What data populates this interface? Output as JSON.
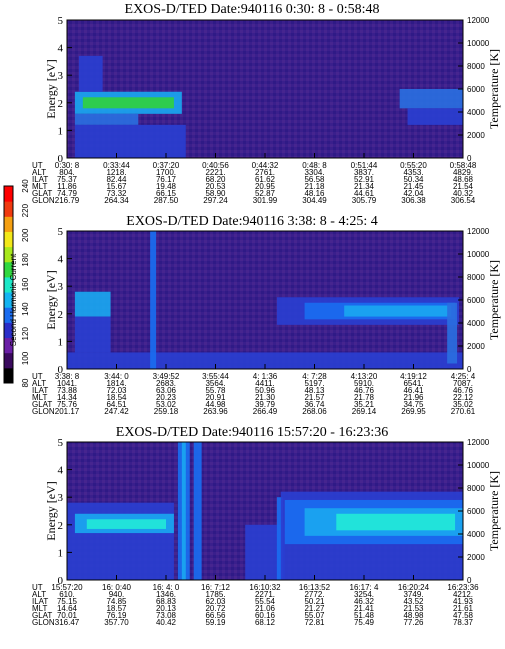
{
  "colorbar": {
    "label": "Second Harmonic Current",
    "ticks": [
      "80",
      "100",
      "120",
      "140",
      "160",
      "180",
      "200",
      "220",
      "240"
    ],
    "colors": [
      "#000000",
      "#3a0a5e",
      "#6a1fa6",
      "#2a2ec8",
      "#1a6cf0",
      "#14b4f2",
      "#1ce8c8",
      "#30d840",
      "#a8e81c",
      "#f2e81a",
      "#f5a012",
      "#f03a10",
      "#ff0000"
    ]
  },
  "palette": {
    "background": "#3a1f8c",
    "blue": "#2a3ed0",
    "bright": "#1aa6f0",
    "cyan": "#22e8d8",
    "green": "#30d040"
  },
  "panels": [
    {
      "title": "EXOS-D/TED   Date:940116  0:30: 8 - 0:58:48",
      "ylabel": "Energy [eV]",
      "y2label": "Temperature [K]",
      "yticks": [
        "0",
        "1",
        "2",
        "3",
        "4",
        "5"
      ],
      "y2ticks": [
        "0",
        "2000",
        "4000",
        "6000",
        "8000",
        "10000",
        "12000"
      ],
      "ephemeris": [
        [
          "UT",
          "0:30: 8",
          "0:33:44",
          "0:37:20",
          "0:40:56",
          "0:44:32",
          "0:48: 8",
          "0:51:44",
          "0:55:20",
          "0:58:48"
        ],
        [
          "ALT",
          "804.",
          "1218.",
          "1700.",
          "2221.",
          "2761.",
          "3304.",
          "3837.",
          "4353.",
          "4829."
        ],
        [
          "ILAT",
          "75.37",
          "82.44",
          "76.17",
          "68.20",
          "61.62",
          "56.58",
          "52.91",
          "50.34",
          "48.68"
        ],
        [
          "MLT",
          "11.86",
          "15.67",
          "19.48",
          "20.53",
          "20.95",
          "21.18",
          "21.34",
          "21.45",
          "21.54"
        ],
        [
          "GLAT",
          "74.79",
          "73.32",
          "66.15",
          "58.90",
          "52.87",
          "48.16",
          "44.61",
          "42.04",
          "40.32"
        ],
        [
          "GLON",
          "216.79",
          "264.34",
          "287.50",
          "297.24",
          "301.99",
          "304.49",
          "305.79",
          "306.38",
          "306.54"
        ]
      ],
      "features": [
        {
          "type": "band",
          "x0": 0.02,
          "x1": 0.29,
          "y0": 1.6,
          "y1": 2.4,
          "color": "#1aa6f0"
        },
        {
          "type": "band",
          "x0": 0.04,
          "x1": 0.27,
          "y0": 1.8,
          "y1": 2.2,
          "color": "#30d040"
        },
        {
          "type": "band",
          "x0": 0.02,
          "x1": 0.18,
          "y0": 1.2,
          "y1": 1.6,
          "color": "#2a6ee0"
        },
        {
          "type": "band",
          "x0": 0.02,
          "x1": 0.3,
          "y0": 0.0,
          "y1": 1.2,
          "color": "#2a3ed0"
        },
        {
          "type": "band",
          "x0": 0.03,
          "x1": 0.09,
          "y0": 2.4,
          "y1": 3.7,
          "color": "#2a3ed0"
        },
        {
          "type": "band",
          "x0": 0.84,
          "x1": 1.0,
          "y0": 1.8,
          "y1": 2.5,
          "color": "#2a6ee0"
        },
        {
          "type": "band",
          "x0": 0.86,
          "x1": 1.0,
          "y0": 1.2,
          "y1": 1.8,
          "color": "#2a3ed0"
        }
      ]
    },
    {
      "title": "EXOS-D/TED   Date:940116  3:38: 8 - 4:25: 4",
      "ylabel": "Energy [eV]",
      "y2label": "Temperature [K]",
      "yticks": [
        "0",
        "1",
        "2",
        "3",
        "4",
        "5"
      ],
      "y2ticks": [
        "0",
        "2000",
        "4000",
        "6000",
        "8000",
        "10000",
        "12000"
      ],
      "ephemeris": [
        [
          "UT",
          "3:38: 8",
          "3:44: 0",
          "3:49:52",
          "3:55:44",
          "4: 1:36",
          "4: 7:28",
          "4:13:20",
          "4:19:12",
          "4:25: 4"
        ],
        [
          "ALT",
          "1041.",
          "1814.",
          "2683.",
          "3564.",
          "4411.",
          "5197.",
          "5910.",
          "6541.",
          "7087."
        ],
        [
          "ILAT",
          "73.88",
          "72.03",
          "63.06",
          "55.78",
          "50.96",
          "48.13",
          "46.76",
          "46.41",
          "46.76"
        ],
        [
          "MLT",
          "14.34",
          "18.54",
          "20.23",
          "20.91",
          "21.30",
          "21.57",
          "21.78",
          "21.96",
          "22.12"
        ],
        [
          "GLAT",
          "75.76",
          "64.51",
          "53.02",
          "44.98",
          "39.79",
          "36.74",
          "35.21",
          "34.75",
          "35.02"
        ],
        [
          "GLON",
          "201.17",
          "247.42",
          "259.18",
          "263.96",
          "266.49",
          "268.06",
          "269.14",
          "269.95",
          "270.61"
        ]
      ],
      "features": [
        {
          "type": "band",
          "x0": 0.0,
          "x1": 1.0,
          "y0": 0.0,
          "y1": 0.6,
          "color": "#2a3ed0"
        },
        {
          "type": "band",
          "x0": 0.02,
          "x1": 0.11,
          "y0": 1.9,
          "y1": 2.8,
          "color": "#1aa6f0"
        },
        {
          "type": "band",
          "x0": 0.02,
          "x1": 0.11,
          "y0": 0.6,
          "y1": 1.9,
          "color": "#2a3ed0"
        },
        {
          "type": "band",
          "x0": 0.53,
          "x1": 0.99,
          "y0": 1.6,
          "y1": 2.6,
          "color": "#2a3ed0"
        },
        {
          "type": "band",
          "x0": 0.6,
          "x1": 0.98,
          "y0": 1.8,
          "y1": 2.4,
          "color": "#1a6cf0"
        },
        {
          "type": "band",
          "x0": 0.7,
          "x1": 0.97,
          "y0": 1.9,
          "y1": 2.3,
          "color": "#1aa6f0"
        },
        {
          "type": "band",
          "x0": 0.21,
          "x1": 0.225,
          "y0": 0.0,
          "y1": 5.0,
          "color": "#1a6cf0"
        },
        {
          "type": "band",
          "x0": 0.96,
          "x1": 0.985,
          "y0": 0.2,
          "y1": 2.4,
          "color": "#2a6ee0"
        }
      ]
    },
    {
      "title": "EXOS-D/TED   Date:940116  15:57:20 - 16:23:36",
      "ylabel": "Energy [eV]",
      "y2label": "Temperature [K]",
      "yticks": [
        "0",
        "1",
        "2",
        "3",
        "4",
        "5"
      ],
      "y2ticks": [
        "0",
        "2000",
        "4000",
        "6000",
        "8000",
        "10000",
        "12000"
      ],
      "ephemeris": [
        [
          "UT",
          "15:57:20",
          "16: 0:40",
          "16: 4: 0",
          "16: 7:12",
          "16:10:32",
          "16:13:52",
          "16:17: 4",
          "16:20:24",
          "16:23:36"
        ],
        [
          "ALT",
          "610.",
          "940.",
          "1346.",
          "1785.",
          "2271.",
          "2772.",
          "3254.",
          "3749.",
          "4212."
        ],
        [
          "ILAT",
          "75.15",
          "74.85",
          "68.83",
          "62.03",
          "55.54",
          "50.21",
          "46.32",
          "43.52",
          "41.93"
        ],
        [
          "MLT",
          "14.64",
          "18.57",
          "20.13",
          "20.72",
          "21.06",
          "21.27",
          "21.41",
          "21.53",
          "21.61"
        ],
        [
          "GLAT",
          "70.01",
          "76.19",
          "73.08",
          "66.56",
          "60.16",
          "55.07",
          "51.48",
          "48.98",
          "47.58"
        ],
        [
          "GLON",
          "316.47",
          "357.70",
          "40.42",
          "59.19",
          "68.12",
          "72.81",
          "75.49",
          "77.26",
          "78.37"
        ]
      ],
      "features": [
        {
          "type": "band",
          "x0": 0.0,
          "x1": 0.27,
          "y0": 0.0,
          "y1": 2.8,
          "color": "#2a3ed0"
        },
        {
          "type": "band",
          "x0": 0.02,
          "x1": 0.27,
          "y0": 1.7,
          "y1": 2.4,
          "color": "#1aa6f0"
        },
        {
          "type": "band",
          "x0": 0.05,
          "x1": 0.25,
          "y0": 1.85,
          "y1": 2.2,
          "color": "#22e8d8"
        },
        {
          "type": "band",
          "x0": 0.28,
          "x1": 0.31,
          "y0": 0.0,
          "y1": 5.0,
          "color": "#1a6cf0"
        },
        {
          "type": "band",
          "x0": 0.29,
          "x1": 0.3,
          "y0": 0.0,
          "y1": 5.0,
          "color": "#1aa6f0"
        },
        {
          "type": "band",
          "x0": 0.32,
          "x1": 0.34,
          "y0": 0.0,
          "y1": 5.0,
          "color": "#1a6cf0"
        },
        {
          "type": "band",
          "x0": 0.45,
          "x1": 0.55,
          "y0": 0.0,
          "y1": 2.0,
          "color": "#2a3ed0"
        },
        {
          "type": "band",
          "x0": 0.53,
          "x1": 0.545,
          "y0": 0.0,
          "y1": 3.0,
          "color": "#1a6cf0"
        },
        {
          "type": "band",
          "x0": 0.54,
          "x1": 1.0,
          "y0": 0.0,
          "y1": 3.2,
          "color": "#2a3ed0"
        },
        {
          "type": "band",
          "x0": 0.55,
          "x1": 1.0,
          "y0": 1.3,
          "y1": 2.9,
          "color": "#1a6cf0"
        },
        {
          "type": "band",
          "x0": 0.6,
          "x1": 1.0,
          "y0": 1.6,
          "y1": 2.6,
          "color": "#1aa6f0"
        },
        {
          "type": "band",
          "x0": 0.68,
          "x1": 0.98,
          "y0": 1.8,
          "y1": 2.4,
          "color": "#22e8d8"
        }
      ]
    }
  ]
}
